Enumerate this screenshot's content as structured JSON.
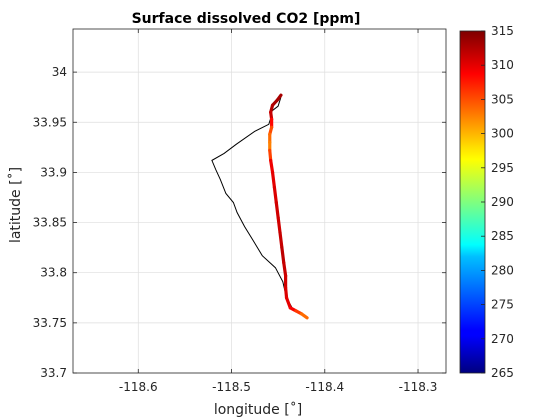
{
  "chart_data": {
    "type": "line",
    "title": "Surface dissolved CO2 [ppm]",
    "xlabel": "longitude [˚]",
    "ylabel": "latitude [˚]",
    "xlim": [
      -118.67,
      -118.27
    ],
    "ylim": [
      33.7,
      34.043
    ],
    "xticks": [
      -118.6,
      -118.5,
      -118.4,
      -118.3
    ],
    "xtick_labels": [
      "-118.6",
      "-118.5",
      "-118.4",
      "-118.3"
    ],
    "yticks": [
      33.7,
      33.75,
      33.8,
      33.85,
      33.9,
      33.95,
      34.0
    ],
    "ytick_labels": [
      "33.7",
      "33.75",
      "33.8",
      "33.85",
      "33.9",
      "33.95",
      "34"
    ],
    "grid": true,
    "colorbar": {
      "colormap": "jet",
      "range": [
        265,
        315
      ],
      "ticks": [
        265,
        270,
        275,
        280,
        285,
        290,
        295,
        300,
        305,
        310,
        315
      ],
      "tick_labels": [
        "265",
        "270",
        "275",
        "280",
        "285",
        "290",
        "295",
        "300",
        "305",
        "310",
        "315"
      ]
    },
    "series": [
      {
        "style": "thin black track (no CO2 data)",
        "color": "#000000",
        "points": [
          [
            -118.447,
            33.975
          ],
          [
            -118.45,
            33.966
          ],
          [
            -118.457,
            33.961
          ],
          [
            -118.458,
            33.954
          ],
          [
            -118.46,
            33.948
          ],
          [
            -118.475,
            33.941
          ],
          [
            -118.495,
            33.928
          ],
          [
            -118.508,
            33.919
          ],
          [
            -118.521,
            33.912
          ],
          [
            -118.517,
            33.903
          ],
          [
            -118.512,
            33.893
          ],
          [
            -118.506,
            33.879
          ],
          [
            -118.498,
            33.87
          ],
          [
            -118.494,
            33.86
          ],
          [
            -118.486,
            33.846
          ],
          [
            -118.478,
            33.834
          ],
          [
            -118.467,
            33.817
          ],
          [
            -118.453,
            33.805
          ],
          [
            -118.445,
            33.791
          ],
          [
            -118.441,
            33.775
          ],
          [
            -118.435,
            33.765
          ],
          [
            -118.43,
            33.761
          ]
        ]
      },
      {
        "style": "colored by CO2 value",
        "points": [
          [
            -118.447,
            33.977,
            313
          ],
          [
            -118.451,
            33.972,
            313
          ],
          [
            -118.456,
            33.967,
            313
          ],
          [
            -118.458,
            33.96,
            312
          ],
          [
            -118.457,
            33.953,
            311
          ],
          [
            -118.457,
            33.945,
            306
          ],
          [
            -118.459,
            33.938,
            304
          ],
          [
            -118.459,
            33.93,
            303
          ],
          [
            -118.459,
            33.922,
            302
          ],
          [
            -118.458,
            33.912,
            309
          ],
          [
            -118.456,
            33.9,
            310
          ],
          [
            -118.454,
            33.885,
            310
          ],
          [
            -118.452,
            33.87,
            311
          ],
          [
            -118.45,
            33.855,
            311
          ],
          [
            -118.448,
            33.84,
            311
          ],
          [
            -118.446,
            33.825,
            312
          ],
          [
            -118.444,
            33.81,
            312
          ],
          [
            -118.442,
            33.797,
            311
          ],
          [
            -118.442,
            33.785,
            311
          ],
          [
            -118.441,
            33.775,
            310
          ],
          [
            -118.437,
            33.765,
            310
          ],
          [
            -118.431,
            33.762,
            308
          ],
          [
            -118.425,
            33.759,
            304
          ],
          [
            -118.419,
            33.755,
            303
          ]
        ]
      }
    ]
  }
}
